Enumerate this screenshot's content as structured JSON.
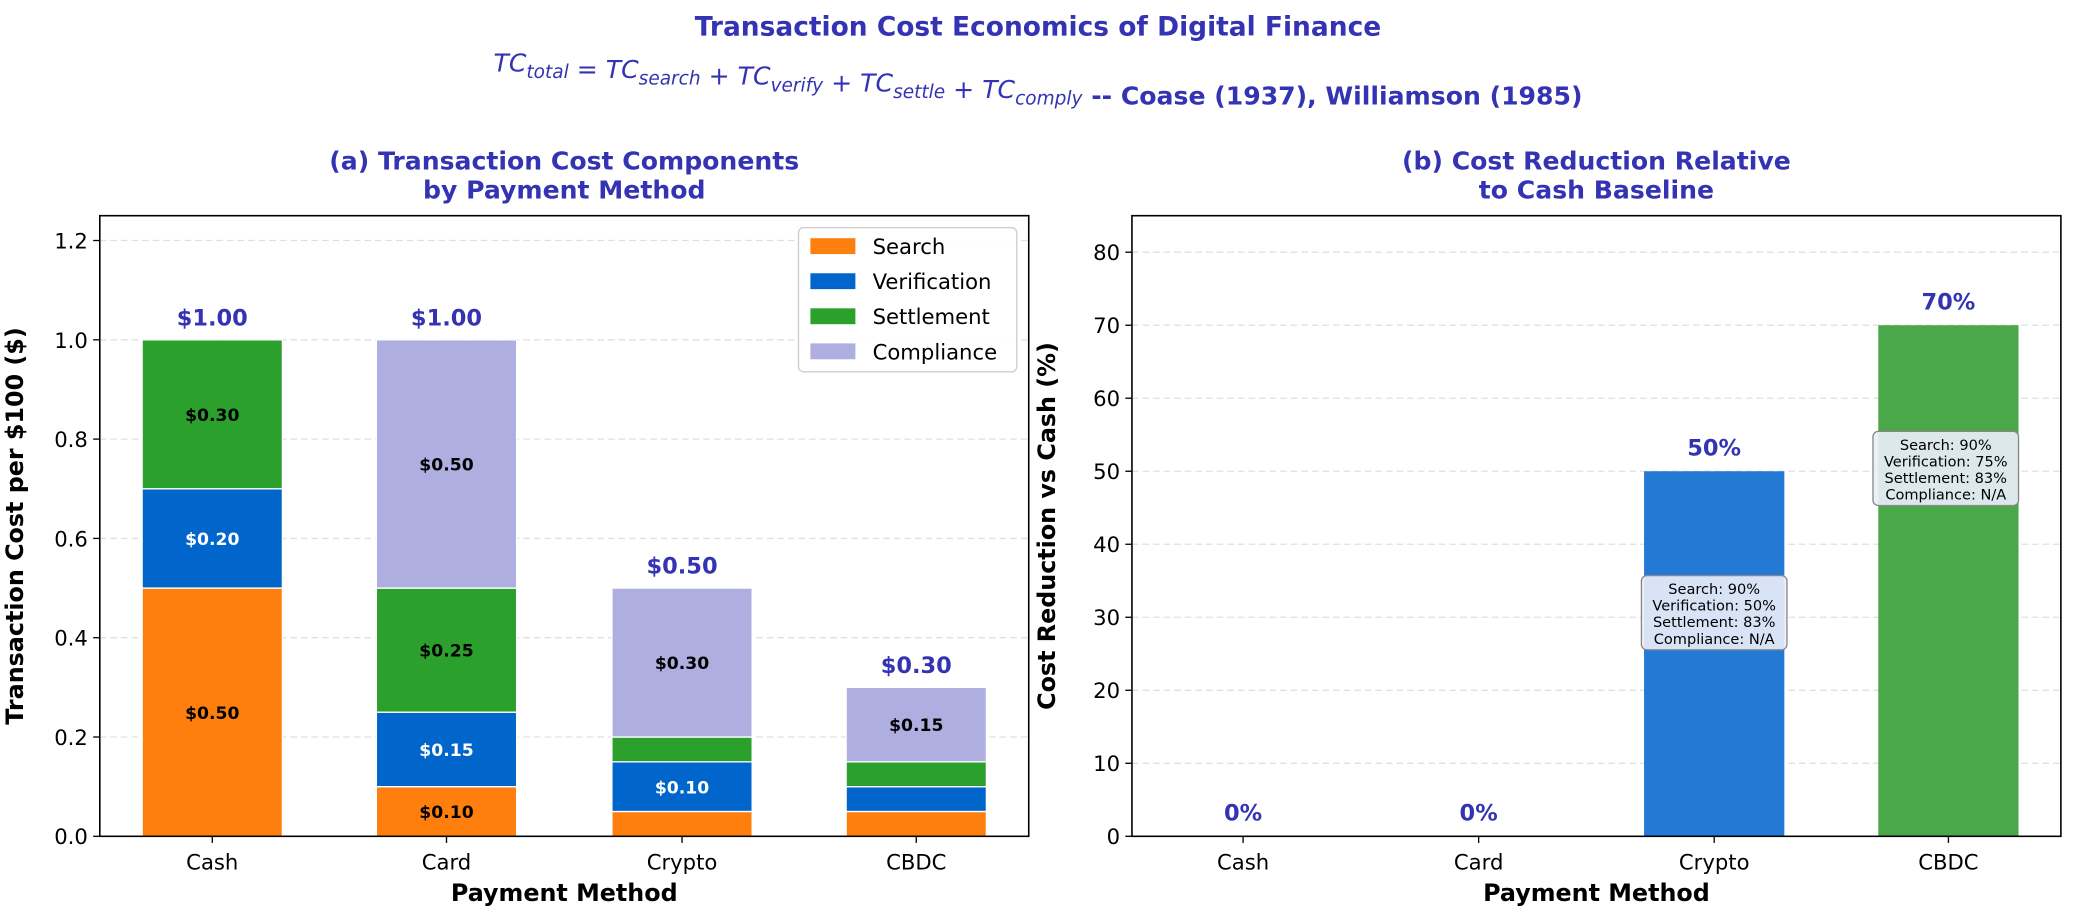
{
  "title": "Transaction Cost Economics of Digital Finance",
  "subtitle_formula": {
    "terms": [
      {
        "base": "TC",
        "sub": "total"
      },
      {
        "base": "TC",
        "sub": "search"
      },
      {
        "base": "TC",
        "sub": "verify"
      },
      {
        "base": "TC",
        "sub": "settle"
      },
      {
        "base": "TC",
        "sub": "comply"
      }
    ],
    "citation": "-- Coase (1937), Williamson (1985)"
  },
  "title_color": "#3333b3",
  "chart_data": [
    {
      "type": "bar",
      "stacked": true,
      "title": "(a) Transaction Cost Components\nby Payment Method",
      "xlabel": "Payment Method",
      "ylabel": "Transaction Cost per $100 ($)",
      "categories": [
        "Cash",
        "Card",
        "Crypto",
        "CBDC"
      ],
      "ylim": [
        0,
        1.25
      ],
      "yticks": [
        "0.0",
        "0.2",
        "0.4",
        "0.6",
        "0.8",
        "1.0",
        "1.2"
      ],
      "grid": true,
      "legend_position": "top-right",
      "series": [
        {
          "name": "Search",
          "color": "#ff7f0e",
          "values": [
            0.5,
            0.1,
            0.05,
            0.05
          ],
          "labels": [
            "$0.50",
            "$0.10",
            "",
            ""
          ],
          "label_color": "#000000"
        },
        {
          "name": "Verification",
          "color": "#0066cc",
          "values": [
            0.2,
            0.15,
            0.1,
            0.05
          ],
          "labels": [
            "$0.20",
            "$0.15",
            "$0.10",
            ""
          ],
          "label_color": "#ffffff"
        },
        {
          "name": "Settlement",
          "color": "#2ca02c",
          "values": [
            0.3,
            0.25,
            0.05,
            0.05
          ],
          "labels": [
            "$0.30",
            "$0.25",
            "",
            ""
          ],
          "label_color": "#000000"
        },
        {
          "name": "Compliance",
          "color": "#aeaee0",
          "values": [
            0.0,
            0.5,
            0.3,
            0.15
          ],
          "labels": [
            "",
            "$0.50",
            "$0.30",
            "$0.15"
          ],
          "label_color": "#000000"
        }
      ],
      "totals": [
        "$1.00",
        "$1.00",
        "$0.50",
        "$0.30"
      ]
    },
    {
      "type": "bar",
      "title": "(b) Cost Reduction Relative\nto Cash Baseline",
      "xlabel": "Payment Method",
      "ylabel": "Cost Reduction vs Cash (%)",
      "categories": [
        "Cash",
        "Card",
        "Crypto",
        "CBDC"
      ],
      "values": [
        0,
        0,
        50,
        70
      ],
      "value_labels": [
        "0%",
        "0%",
        "50%",
        "70%"
      ],
      "colors": [
        "#888888",
        "#888888",
        "#0066cc",
        "#2ca02c"
      ],
      "ylim": [
        0,
        85
      ],
      "yticks": [
        "0",
        "10",
        "20",
        "30",
        "40",
        "50",
        "60",
        "70",
        "80"
      ],
      "grid": true,
      "annotations": [
        {
          "category": "Crypto",
          "lines": [
            "Search: 90%",
            "Verification: 50%",
            "Settlement: 83%",
            "Compliance: N/A"
          ]
        },
        {
          "category": "CBDC",
          "lines": [
            "Search: 90%",
            "Verification: 75%",
            "Settlement: 83%",
            "Compliance: N/A"
          ]
        }
      ]
    }
  ]
}
